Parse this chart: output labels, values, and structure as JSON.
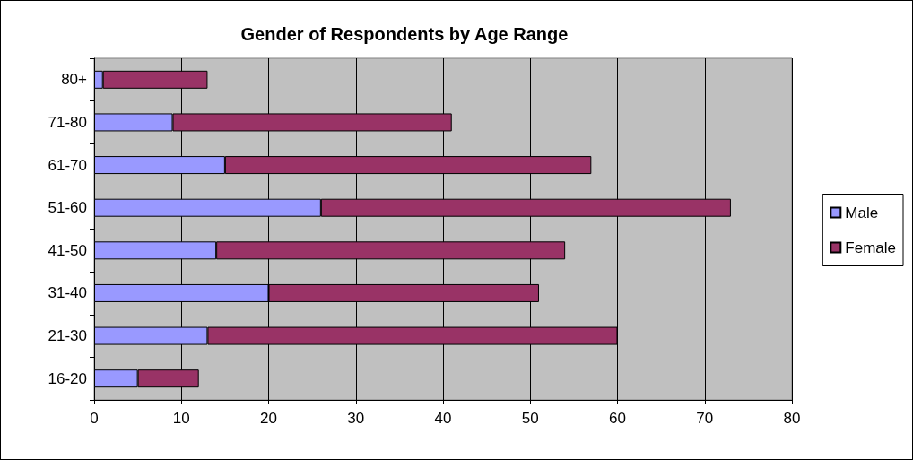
{
  "chart_data": {
    "type": "bar",
    "title": "Gender of Respondents by Age Range",
    "orientation": "horizontal",
    "stacked": true,
    "categories": [
      "80+",
      "71-80",
      "61-70",
      "51-60",
      "41-50",
      "31-40",
      "21-30",
      "16-20"
    ],
    "series": [
      {
        "name": "Male",
        "color": "#9999ff",
        "values": [
          1,
          9,
          15,
          26,
          14,
          20,
          13,
          5
        ]
      },
      {
        "name": "Female",
        "color": "#993366",
        "values": [
          12,
          32,
          42,
          47,
          40,
          31,
          47,
          7
        ]
      }
    ],
    "xlim": [
      0,
      80
    ],
    "xticks": [
      0,
      10,
      20,
      30,
      40,
      50,
      60,
      70,
      80
    ],
    "grid": "x",
    "legend": "right"
  }
}
